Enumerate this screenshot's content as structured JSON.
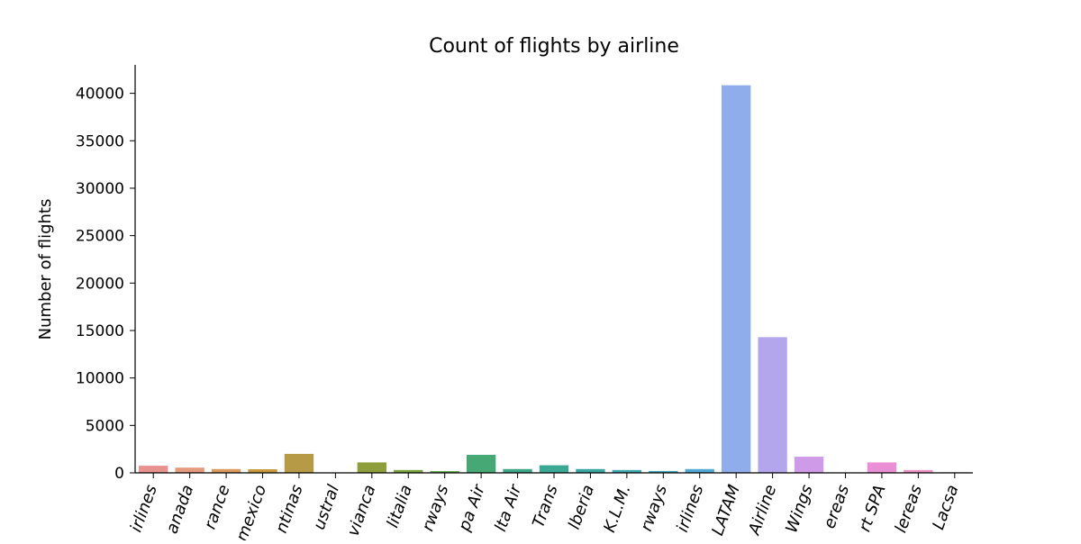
{
  "chart_data": {
    "type": "bar",
    "title": "Count of flights by airline",
    "xlabel": "",
    "ylabel": "Number of flights",
    "ylim": [
      0,
      43000
    ],
    "yticks": [
      0,
      5000,
      10000,
      15000,
      20000,
      25000,
      30000,
      35000,
      40000
    ],
    "categories": [
      "irlines",
      "anada",
      "rance",
      "mexico",
      "ntinas",
      "ustral",
      "vianca",
      "litalia",
      "rways",
      "pa Air",
      "lta Air",
      "Trans",
      "lberia",
      "K.L.M.",
      "rways",
      "irlines",
      "LATAM",
      "Airline",
      "Wings",
      "ereas",
      "rt SPA",
      "lereas",
      "Lacsa"
    ],
    "values": [
      750,
      550,
      400,
      380,
      2000,
      30,
      1100,
      300,
      180,
      1900,
      400,
      800,
      400,
      300,
      200,
      400,
      40850,
      14300,
      1700,
      30,
      1100,
      300,
      60
    ],
    "colors": [
      "#e8928f",
      "#e59a7d",
      "#d99a5b",
      "#c8983f",
      "#b79a45",
      "#a59d3a",
      "#8f9e3d",
      "#7aa23f",
      "#5ea546",
      "#46a874",
      "#3ea587",
      "#3ba896",
      "#3aa6a2",
      "#3fa7ae",
      "#45a6bb",
      "#52a8d4",
      "#8fadea",
      "#b3a6ec",
      "#cf9ae8",
      "#e593df",
      "#ea8fd5",
      "#ec92c4",
      "#ed95b0"
    ],
    "grid": false,
    "legend": "none"
  }
}
